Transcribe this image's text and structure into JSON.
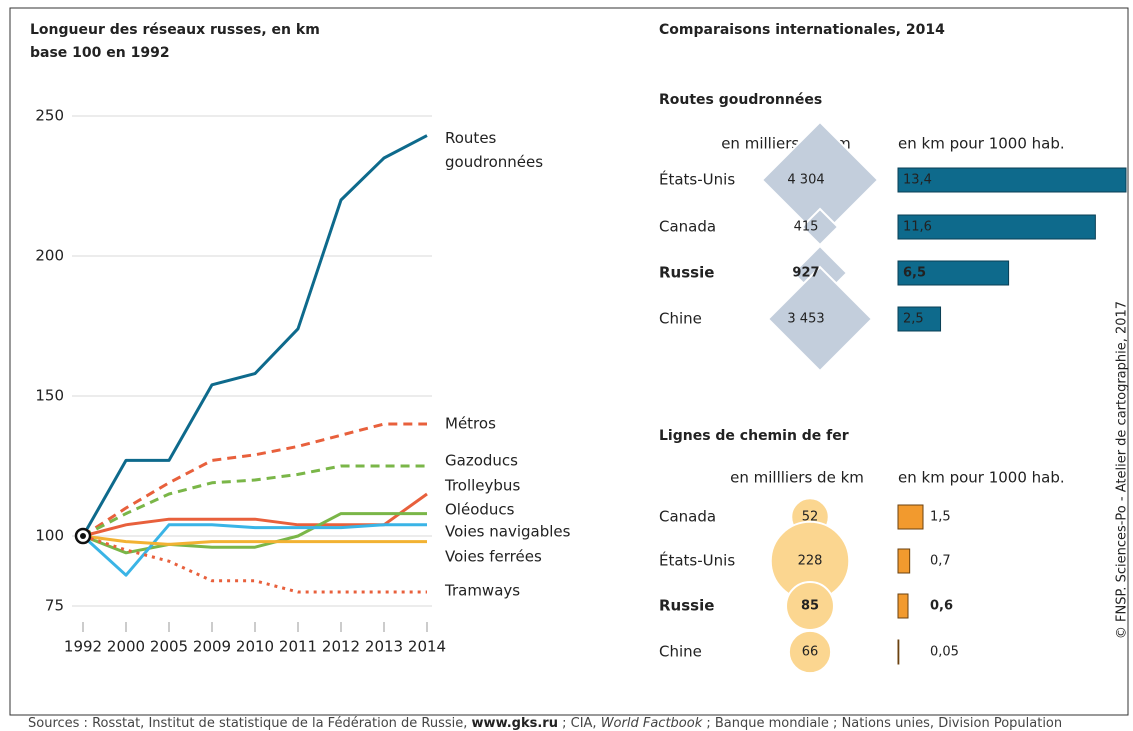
{
  "chart_data": [
    {
      "type": "line",
      "title": "Longueur des réseaux russes, en km",
      "subtitle": "base 100 en 1992",
      "categories": [
        "1992",
        "2000",
        "2005",
        "2009",
        "2010",
        "2011",
        "2012",
        "2013",
        "2014"
      ],
      "ylim": [
        75,
        250
      ],
      "yticks": [
        75,
        100,
        150,
        200,
        250
      ],
      "grid": true,
      "series": [
        {
          "name": "Routes goudronnées",
          "color": "#0e6a8c",
          "style": "solid",
          "values": [
            100,
            127,
            127,
            154,
            158,
            174,
            220,
            235,
            243
          ]
        },
        {
          "name": "Métros",
          "color": "#e8603c",
          "style": "dashed",
          "values": [
            100,
            110,
            119,
            127,
            129,
            132,
            136,
            140,
            140
          ]
        },
        {
          "name": "Gazoducs",
          "color": "#7ab648",
          "style": "dashed",
          "values": [
            100,
            108,
            115,
            119,
            120,
            122,
            125,
            125,
            125
          ]
        },
        {
          "name": "Trolleybus",
          "color": "#e8603c",
          "style": "solid",
          "values": [
            100,
            104,
            106,
            106,
            106,
            104,
            104,
            104,
            115
          ]
        },
        {
          "name": "Oléoducs",
          "color": "#7ab648",
          "style": "solid",
          "values": [
            100,
            94,
            97,
            96,
            96,
            100,
            108,
            108,
            108
          ]
        },
        {
          "name": "Voies navigables",
          "color": "#3ab4e6",
          "style": "solid",
          "values": [
            100,
            86,
            104,
            104,
            103,
            103,
            103,
            104,
            104
          ]
        },
        {
          "name": "Voies ferrées",
          "color": "#f2b233",
          "style": "solid",
          "values": [
            100,
            98,
            97,
            98,
            98,
            98,
            98,
            98,
            98
          ]
        },
        {
          "name": "Tramways",
          "color": "#e8603c",
          "style": "dotted",
          "values": [
            100,
            95,
            91,
            84,
            84,
            80,
            80,
            80,
            80
          ]
        }
      ]
    },
    {
      "type": "diamond-bar",
      "title": "Routes goudronnées",
      "categories": [
        "États-Unis",
        "Canada",
        "Russie",
        "Chine"
      ],
      "highlight_index": 2,
      "series": [
        {
          "name": "en milliers de km",
          "color": "#c3cedc",
          "values": [
            4304,
            415,
            927,
            3453
          ],
          "value_labels": [
            "4 304",
            "415",
            "927",
            "3 453"
          ]
        },
        {
          "name": "en km pour 1000 hab.",
          "color": "#0e6a8c",
          "xlim": [
            0,
            13.4
          ],
          "values": [
            13.4,
            11.6,
            6.5,
            2.5
          ],
          "value_labels": [
            "13,4",
            "11,6",
            "6,5",
            "2,5"
          ]
        }
      ]
    },
    {
      "type": "circle-bar",
      "title": "Lignes de chemin de fer",
      "categories": [
        "Canada",
        "États-Unis",
        "Russie",
        "Chine"
      ],
      "highlight_index": 2,
      "series": [
        {
          "name": "en millliers de km",
          "color": "#fbd690",
          "values": [
            52,
            228,
            85,
            66
          ]
        },
        {
          "name": "en km pour 1000 hab.",
          "color": "#f29a2e",
          "xlim": [
            0,
            1.5
          ],
          "values": [
            1.5,
            0.7,
            0.6,
            0.05
          ],
          "value_labels": [
            "1,5",
            "0,7",
            "0,6",
            "0,05"
          ]
        }
      ]
    }
  ],
  "comparisons_title": "Comparaisons internationales, 2014",
  "credit": "© FNSP. Sciences-Po - Atelier de cartographie, 2017",
  "sources": [
    "Sources : Rosstat, Institut de statistique de la Fédération de Russie, ",
    "www.gks.ru",
    " ; CIA, ",
    "World Factbook",
    " ; Banque mondiale ; Nations unies, Division Population"
  ]
}
